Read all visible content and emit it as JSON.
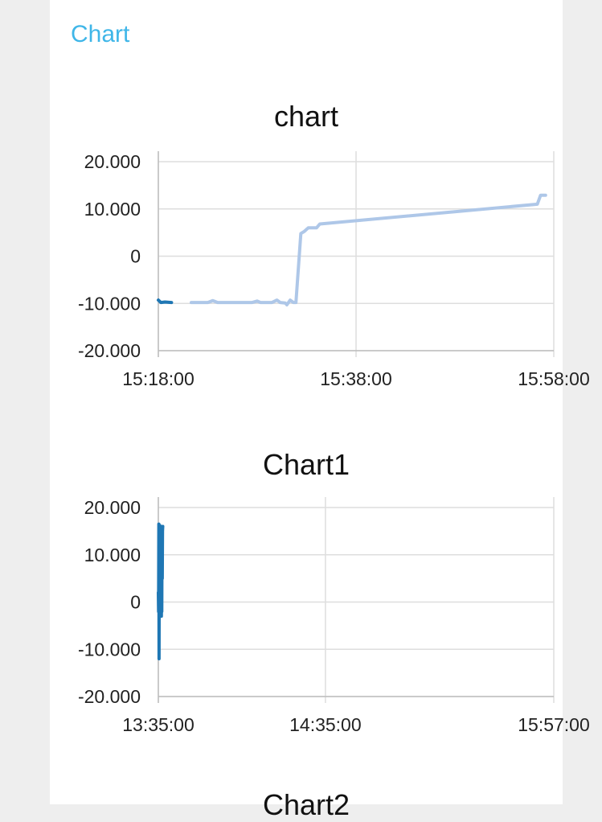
{
  "group": {
    "title": "Chart"
  },
  "charts": [
    {
      "title": "chart"
    },
    {
      "title": "Chart1"
    },
    {
      "title": "Chart2"
    }
  ],
  "chart_data": [
    {
      "type": "line",
      "title": "chart",
      "xlabel": "",
      "ylabel": "",
      "x_ticks": [
        "15:18:00",
        "15:38:00",
        "15:58:00"
      ],
      "y_ticks": [
        "20.000",
        "10.000",
        "0",
        "-10.000",
        "-20.000"
      ],
      "xlim": [
        "15:18:00",
        "15:58:00"
      ],
      "ylim": [
        -20,
        20
      ],
      "grid": true,
      "series": [
        {
          "color": "#1f77b4",
          "points": [
            [
              "15:18:00",
              -9.3
            ],
            [
              "15:18:15",
              -9.8
            ],
            [
              "15:18:40",
              -9.7
            ],
            [
              "15:19:20",
              -9.8
            ]
          ]
        },
        {
          "color": "#aec7e8",
          "points": [
            [
              "15:21:20",
              -9.8
            ],
            [
              "15:23:00",
              -9.8
            ],
            [
              "15:23:30",
              -9.4
            ],
            [
              "15:24:00",
              -9.8
            ],
            [
              "15:26:00",
              -9.8
            ],
            [
              "15:27:30",
              -9.8
            ],
            [
              "15:28:00",
              -9.5
            ],
            [
              "15:28:20",
              -9.8
            ],
            [
              "15:29:30",
              -9.8
            ],
            [
              "15:30:00",
              -9.3
            ],
            [
              "15:30:20",
              -9.8
            ],
            [
              "15:30:50",
              -9.9
            ],
            [
              "15:31:00",
              -10.3
            ],
            [
              "15:31:20",
              -9.3
            ],
            [
              "15:31:40",
              -9.8
            ],
            [
              "15:31:55",
              -9.8
            ],
            [
              "15:32:05",
              -5.0
            ],
            [
              "15:32:25",
              4.8
            ],
            [
              "15:32:45",
              5.2
            ],
            [
              "15:33:10",
              6.0
            ],
            [
              "15:34:00",
              6.0
            ],
            [
              "15:34:20",
              6.8
            ],
            [
              "15:56:20",
              11.0
            ],
            [
              "15:56:40",
              12.9
            ],
            [
              "15:57:10",
              12.9
            ]
          ]
        }
      ]
    },
    {
      "type": "line",
      "title": "Chart1",
      "xlabel": "",
      "ylabel": "",
      "x_ticks": [
        "13:35:00",
        "14:35:00",
        "15:57:00"
      ],
      "y_ticks": [
        "20.000",
        "10.000",
        "0",
        "-10.000",
        "-20.000"
      ],
      "xlim": [
        "13:35:00",
        "15:57:00"
      ],
      "ylim": [
        -20,
        20
      ],
      "grid": true,
      "series": [
        {
          "color": "#1f77b4",
          "points": [
            [
              "13:35:00",
              2.0
            ],
            [
              "13:35:05",
              -2.0
            ],
            [
              "13:35:10",
              16.5
            ],
            [
              "13:35:15",
              -12.0
            ],
            [
              "13:35:20",
              15.0
            ],
            [
              "13:35:25",
              0.5
            ],
            [
              "13:35:30",
              16.2
            ],
            [
              "13:35:35",
              -2.5
            ],
            [
              "13:35:40",
              14.0
            ],
            [
              "13:35:45",
              -1.5
            ],
            [
              "13:35:50",
              15.5
            ],
            [
              "13:35:55",
              3.0
            ],
            [
              "13:36:00",
              16.0
            ],
            [
              "13:36:05",
              -3.0
            ],
            [
              "13:36:10",
              12.0
            ],
            [
              "13:36:15",
              -2.0
            ],
            [
              "13:36:20",
              15.8
            ],
            [
              "13:36:25",
              5.0
            ],
            [
              "13:36:30",
              15.0
            ],
            [
              "13:36:35",
              16.0
            ]
          ]
        }
      ]
    }
  ]
}
